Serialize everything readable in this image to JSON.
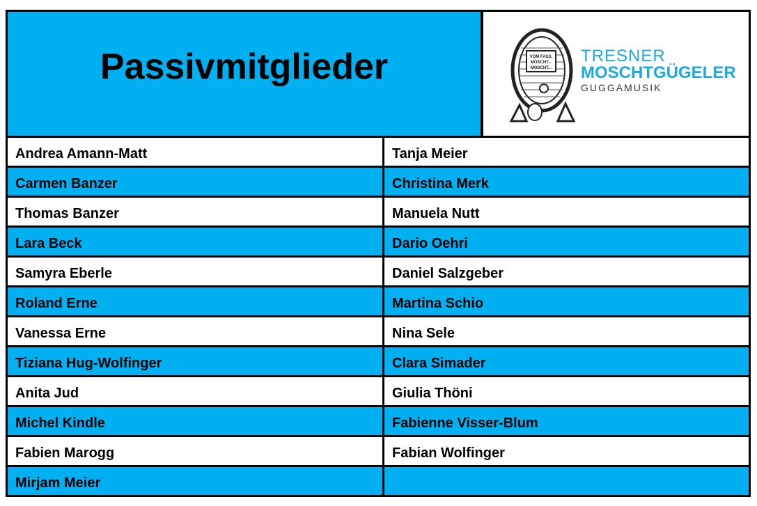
{
  "title": "Passivmitglieder",
  "logo": {
    "line1": "TRESNER",
    "line2": "MOSCHTGÜGELER",
    "line3": "GUGGAMUSIK",
    "sign": "VOM FASS, MOSCHT... MOSCHT..."
  },
  "colors": {
    "accent": "#00B0F0"
  },
  "left_column": [
    "Andrea Amann-Matt",
    "Carmen Banzer",
    "Thomas Banzer",
    "Lara Beck",
    "Samyra Eberle",
    "Roland Erne",
    "Vanessa Erne",
    "Tiziana Hug-Wolfinger",
    "Anita Jud",
    "Michel Kindle",
    "Fabien Marogg",
    "Mirjam Meier"
  ],
  "right_column": [
    "Tanja Meier",
    "Christina Merk",
    "Manuela Nutt",
    "Dario Oehri",
    "Daniel Salzgeber",
    "Martina Schio",
    "Nina Sele",
    "Clara Simader",
    "Giulia Thöni",
    "Fabienne Visser-Blum",
    "Fabian Wolfinger",
    ""
  ]
}
